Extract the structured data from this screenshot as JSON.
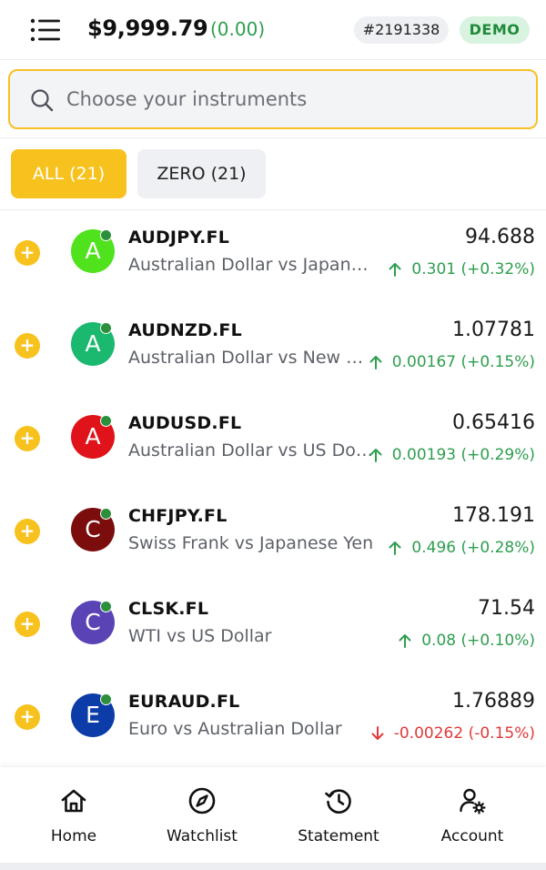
{
  "header": {
    "balance": "$9,999.79",
    "balance_change": "(0.00)",
    "account_id": "#2191338",
    "mode_badge": "DEMO"
  },
  "search": {
    "placeholder": "Choose your instruments",
    "value": ""
  },
  "tabs": [
    {
      "label": "ALL (21)",
      "active": true
    },
    {
      "label": "ZERO (21)",
      "active": false
    }
  ],
  "instruments": [
    {
      "symbol": "AUDJPY.FL",
      "description": "Australian Dollar vs Japanese Yen",
      "letter": "A",
      "avatar_color": "#4fe21d",
      "price": "94.688",
      "change": "0.301 (+0.32%)",
      "direction": "up"
    },
    {
      "symbol": "AUDNZD.FL",
      "description": "Australian Dollar vs New Zealand Dollar",
      "letter": "A",
      "avatar_color": "#1ab96f",
      "price": "1.07781",
      "change": "0.00167 (+0.15%)",
      "direction": "up"
    },
    {
      "symbol": "AUDUSD.FL",
      "description": "Australian Dollar vs US Dollar",
      "letter": "A",
      "avatar_color": "#e0121a",
      "price": "0.65416",
      "change": "0.00193 (+0.29%)",
      "direction": "up"
    },
    {
      "symbol": "CHFJPY.FL",
      "description": "Swiss Frank vs Japanese Yen",
      "letter": "C",
      "avatar_color": "#7b0d0d",
      "price": "178.191",
      "change": "0.496 (+0.28%)",
      "direction": "up"
    },
    {
      "symbol": "CLSK.FL",
      "description": "WTI vs US Dollar",
      "letter": "C",
      "avatar_color": "#5a43b5",
      "price": "71.54",
      "change": "0.08 (+0.10%)",
      "direction": "up"
    },
    {
      "symbol": "EURAUD.FL",
      "description": "Euro vs Australian Dollar",
      "letter": "E",
      "avatar_color": "#0c3ca8",
      "price": "1.76889",
      "change": "-0.00262 (-0.15%)",
      "direction": "down"
    }
  ],
  "bottom_nav": [
    {
      "label": "Home",
      "icon": "home-icon"
    },
    {
      "label": "Watchlist",
      "icon": "compass-icon"
    },
    {
      "label": "Statement",
      "icon": "history-icon"
    },
    {
      "label": "Account",
      "icon": "user-settings-icon"
    }
  ],
  "colors": {
    "accent": "#f7c21d",
    "positive": "#2e9e4f",
    "negative": "#e03a3a",
    "online": "#2c8f3c"
  }
}
